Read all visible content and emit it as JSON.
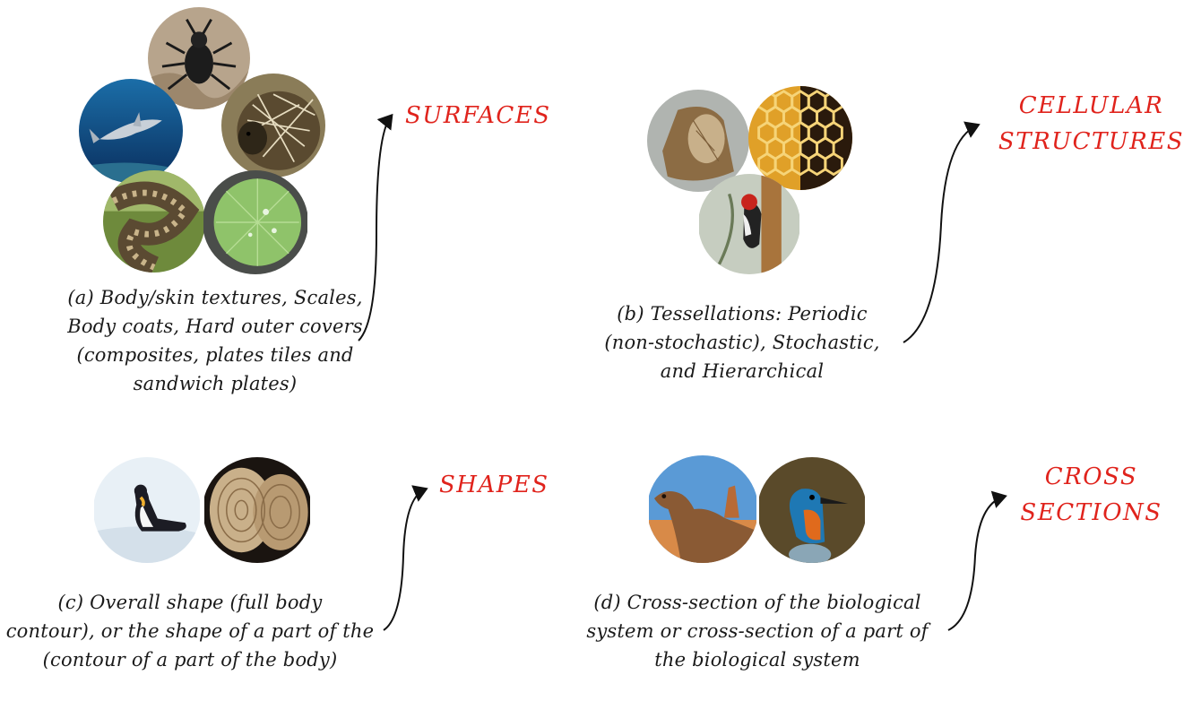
{
  "panels": {
    "a": {
      "label": "SURFACES",
      "caption": [
        "(a) Body/skin textures, Scales,",
        "Body coats, Hard outer covers",
        "(composites, plates tiles and",
        "sandwich plates)"
      ],
      "images": [
        "beetle",
        "shark",
        "porcupine",
        "snake",
        "lotus-leaf"
      ]
    },
    "b": {
      "label": [
        "CELLULAR",
        "STRUCTURES"
      ],
      "caption": [
        "(b) Tessellations: Periodic",
        "(non-stochastic), Stochastic,",
        "and Hierarchical"
      ],
      "images": [
        "wood",
        "honeycomb",
        "woodpecker"
      ]
    },
    "c": {
      "label": "SHAPES",
      "caption": [
        "(c) Overall shape (full body",
        "contour), or the shape of a part of the",
        "(contour of a part of the body)"
      ],
      "images": [
        "penguin",
        "tree-rings"
      ]
    },
    "d": {
      "label": [
        "CROSS",
        "SECTIONS"
      ],
      "caption": [
        "(d) Cross-section of the biological",
        "system or cross-section of a part of",
        "the biological system"
      ],
      "images": [
        "camel",
        "kingfisher"
      ]
    }
  },
  "colors": {
    "label": "#e0231c",
    "arrow": "#111111",
    "text": "#1a1a1a"
  }
}
